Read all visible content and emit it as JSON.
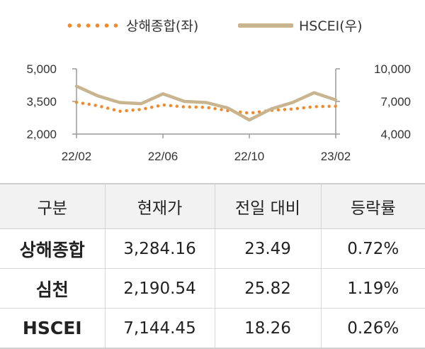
{
  "legend": {
    "series1": "상해종합(좌)",
    "series2": "HSCEI(우)"
  },
  "colors": {
    "series1": "#f08a2c",
    "series2": "#c8b48e",
    "header_bg": "#f2f2f2"
  },
  "chart_data": {
    "type": "line",
    "x_ticks": [
      "22/02",
      "22/06",
      "22/10",
      "23/02"
    ],
    "left_axis": {
      "ticks": [
        "5,000",
        "3,500",
        "2,000"
      ],
      "ylim": [
        2000,
        5000
      ]
    },
    "right_axis": {
      "ticks": [
        "10,000",
        "7,000",
        "4,000"
      ],
      "ylim": [
        4000,
        10000
      ]
    },
    "x": [
      "22/02",
      "22/03",
      "22/04",
      "22/05",
      "22/06",
      "22/07",
      "22/08",
      "22/09",
      "22/10",
      "22/11",
      "22/12",
      "23/01",
      "23/02"
    ],
    "series": [
      {
        "name": "상해종합(좌)",
        "axis": "left",
        "style": "dotted",
        "values": [
          3460,
          3300,
          3050,
          3130,
          3340,
          3250,
          3230,
          3080,
          2960,
          3090,
          3150,
          3260,
          3280
        ]
      },
      {
        "name": "HSCEI(우)",
        "axis": "right",
        "style": "solid",
        "values": [
          8400,
          7500,
          6900,
          6800,
          7700,
          7000,
          6900,
          6400,
          5300,
          6300,
          6900,
          7800,
          7140
        ]
      }
    ]
  },
  "table": {
    "headers": [
      "구분",
      "현재가",
      "전일 대비",
      "등락률"
    ],
    "rows": [
      {
        "name": "상해종합",
        "price": "3,284.16",
        "change": "23.49",
        "rate": "0.72%"
      },
      {
        "name": "심천",
        "price": "2,190.54",
        "change": "25.82",
        "rate": "1.19%"
      },
      {
        "name": "HSCEI",
        "price": "7,144.45",
        "change": "18.26",
        "rate": "0.26%"
      }
    ]
  }
}
